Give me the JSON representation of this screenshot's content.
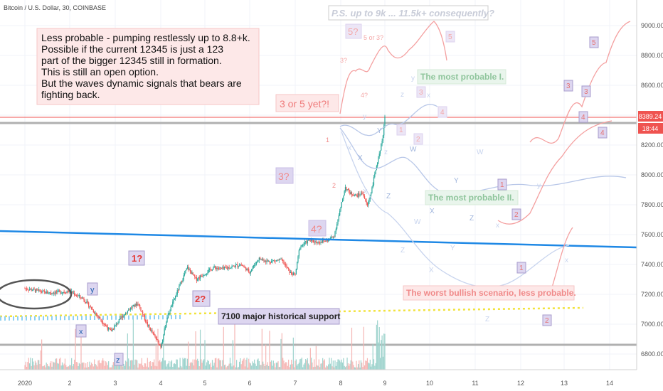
{
  "header": {
    "symbol_title": "Bitcoin / U.S. Dollar, 30, COINBASE"
  },
  "price_axis": {
    "labels": [
      "9000.00",
      "8800.00",
      "8600.00",
      "8400.00",
      "8200.00",
      "8000.00",
      "7800.00",
      "7600.00",
      "7400.00",
      "7200.00",
      "7000.00",
      "6800.00"
    ],
    "current_price": "8389.24",
    "countdown": "18:44"
  },
  "time_axis": {
    "labels": [
      "2020",
      "2",
      "3",
      "4",
      "5",
      "6",
      "7",
      "8",
      "9",
      "10",
      "11",
      "12",
      "13",
      "14"
    ]
  },
  "annotations": {
    "top_note": "P.S. up to 9k ... 11.5k+ consequently?",
    "main_note": [
      "Less probable - pumping restlessly up to 8.8+k.",
      "Possible if the current 12345 is just a 123",
      "part of the bigger 12345 still in formation.",
      "This is still an open option.",
      "But the waves dynamic signals that bears are",
      "fighting back."
    ],
    "three_or_five": "3 or 5 yet?!",
    "most_probable_1": "The most probable I.",
    "most_probable_2": "The most probable II.",
    "worst_bullish": "The worst bullish scenario, less probable.",
    "support": "7100 major historical support"
  },
  "wave_labels": {
    "w1": "1?",
    "w2": "2?",
    "w3": "3?",
    "w4": "4?",
    "w5": "5?",
    "w5or3": "5 or 3?",
    "w3q": "3?",
    "w4q": "4?",
    "wx": "x",
    "wy": "y",
    "wz": "z",
    "p1": "1",
    "p2": "2",
    "p3": "3",
    "p4": "4",
    "p5": "5",
    "X": "X",
    "Y": "Y",
    "Z": "Z",
    "W": "W"
  },
  "colors": {
    "trendline": "#1e88e5",
    "support_dots": "#f2e33c",
    "up_candle": "#26a69a",
    "down_candle": "#ef5350",
    "price_label_bg": "#ef5350",
    "note_bg": "#fde8e8",
    "green_text": "#7fbf8f",
    "pink_text": "#f08080",
    "purple_box": "#ddd6f0"
  },
  "chart_data": {
    "type": "candlestick",
    "title": "Bitcoin / U.S. Dollar, 30, COINBASE",
    "ylim": [
      6700,
      9250
    ],
    "x_labels": [
      "2020",
      "2",
      "3",
      "4",
      "5",
      "6",
      "7",
      "8",
      "9",
      "10",
      "11",
      "12",
      "13",
      "14"
    ],
    "price_path": [
      {
        "d": 0.0,
        "p": 7240
      },
      {
        "d": 0.5,
        "p": 7210
      },
      {
        "d": 1.0,
        "p": 7220
      },
      {
        "d": 1.3,
        "p": 7170
      },
      {
        "d": 1.6,
        "p": 7060
      },
      {
        "d": 1.9,
        "p": 6950
      },
      {
        "d": 2.15,
        "p": 7050
      },
      {
        "d": 2.3,
        "p": 7100
      },
      {
        "d": 2.5,
        "p": 7140
      },
      {
        "d": 2.7,
        "p": 7000
      },
      {
        "d": 3.0,
        "p": 6850
      },
      {
        "d": 3.15,
        "p": 7050
      },
      {
        "d": 3.35,
        "p": 7200
      },
      {
        "d": 3.6,
        "p": 7380
      },
      {
        "d": 3.8,
        "p": 7300
      },
      {
        "d": 4.0,
        "p": 7340
      },
      {
        "d": 4.2,
        "p": 7380
      },
      {
        "d": 4.4,
        "p": 7370
      },
      {
        "d": 4.8,
        "p": 7400
      },
      {
        "d": 5.0,
        "p": 7350
      },
      {
        "d": 5.2,
        "p": 7440
      },
      {
        "d": 5.4,
        "p": 7420
      },
      {
        "d": 5.7,
        "p": 7430
      },
      {
        "d": 5.9,
        "p": 7340
      },
      {
        "d": 6.0,
        "p": 7330
      },
      {
        "d": 6.1,
        "p": 7520
      },
      {
        "d": 6.3,
        "p": 7560
      },
      {
        "d": 6.5,
        "p": 7550
      },
      {
        "d": 6.7,
        "p": 7560
      },
      {
        "d": 6.85,
        "p": 7590
      },
      {
        "d": 7.0,
        "p": 7780
      },
      {
        "d": 7.1,
        "p": 7920
      },
      {
        "d": 7.2,
        "p": 7880
      },
      {
        "d": 7.35,
        "p": 7860
      },
      {
        "d": 7.5,
        "p": 7880
      },
      {
        "d": 7.6,
        "p": 7790
      },
      {
        "d": 7.7,
        "p": 7900
      },
      {
        "d": 7.8,
        "p": 8050
      },
      {
        "d": 7.88,
        "p": 8150
      },
      {
        "d": 7.95,
        "p": 8250
      },
      {
        "d": 8.0,
        "p": 8389
      }
    ],
    "levels": {
      "current_price": 8389.24,
      "support": 7100,
      "gray_line_upper": 8370,
      "gray_line_lower": 6870
    },
    "trendline": [
      {
        "d": -0.5,
        "p": 7650
      },
      {
        "d": 14.4,
        "p": 7510
      }
    ]
  }
}
